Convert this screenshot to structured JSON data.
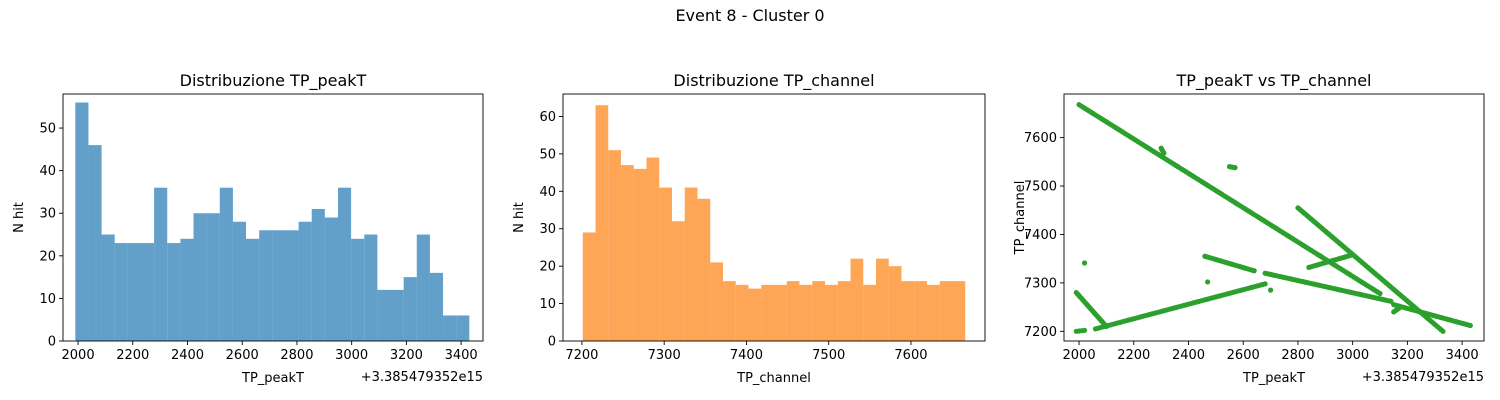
{
  "figure": {
    "suptitle": "Event 8 - Cluster 0"
  },
  "chart_data": [
    {
      "type": "bar",
      "title": "Distribuzione TP_peakT",
      "xlabel": "TP_peakT",
      "ylabel": "N hit",
      "x_offset_label": "+3.385479352e15",
      "color": "#1f77b4",
      "alpha": 0.7,
      "xlim": [
        1945,
        3480
      ],
      "ylim": [
        0,
        58
      ],
      "xticks": [
        2000,
        2200,
        2400,
        2600,
        2800,
        3000,
        3200,
        3400
      ],
      "yticks": [
        0,
        10,
        20,
        30,
        40,
        50
      ],
      "bin_edges": [
        1990,
        2038,
        2086,
        2134,
        2182,
        2230,
        2278,
        2326,
        2374,
        2422,
        2470,
        2518,
        2566,
        2614,
        2662,
        2710,
        2758,
        2806,
        2854,
        2902,
        2950,
        2998,
        3046,
        3094,
        3142,
        3190,
        3238,
        3286,
        3334,
        3382,
        3430
      ],
      "values": [
        56,
        46,
        25,
        23,
        23,
        23,
        36,
        23,
        24,
        30,
        30,
        36,
        28,
        24,
        26,
        26,
        26,
        28,
        31,
        29,
        36,
        24,
        25,
        12,
        12,
        15,
        25,
        16,
        6,
        6
      ]
    },
    {
      "type": "bar",
      "title": "Distribuzione TP_channel",
      "xlabel": "TP_channel",
      "ylabel": "N hit",
      "color": "#ff7f0e",
      "alpha": 0.7,
      "xlim": [
        7177,
        7690
      ],
      "ylim": [
        0,
        66
      ],
      "xticks": [
        7200,
        7300,
        7400,
        7500,
        7600
      ],
      "yticks": [
        0,
        10,
        20,
        30,
        40,
        50,
        60
      ],
      "bin_edges": [
        7201,
        7216.5,
        7232,
        7247.5,
        7263,
        7278.5,
        7294,
        7309.5,
        7325,
        7340.5,
        7356,
        7371.5,
        7387,
        7402.5,
        7418,
        7433.5,
        7449,
        7464.5,
        7480,
        7495.5,
        7511,
        7526.5,
        7542,
        7557.5,
        7573,
        7588.5,
        7604,
        7619.5,
        7635,
        7650.5,
        7666
      ],
      "values": [
        29,
        63,
        51,
        47,
        46,
        49,
        41,
        32,
        41,
        38,
        21,
        16,
        15,
        14,
        15,
        15,
        16,
        15,
        16,
        15,
        16,
        22,
        15,
        22,
        20,
        16,
        16,
        15,
        16,
        16
      ]
    },
    {
      "type": "scatter",
      "title": "TP_peakT vs TP_channel",
      "xlabel": "TP_peakT",
      "ylabel": "TP_channel",
      "x_offset_label": "+3.385479352e15",
      "color": "#2ca02c",
      "xlim": [
        1945,
        3480
      ],
      "ylim": [
        7180,
        7690
      ],
      "xticks": [
        2000,
        2200,
        2400,
        2600,
        2800,
        3000,
        3200,
        3400
      ],
      "yticks": [
        7200,
        7300,
        7400,
        7500,
        7600
      ],
      "segments": [
        {
          "x0": 2000,
          "y0": 7668,
          "x1": 3100,
          "y1": 7278,
          "n": 150
        },
        {
          "x0": 3150,
          "y0": 7255,
          "x1": 3430,
          "y1": 7212,
          "n": 40
        },
        {
          "x0": 2800,
          "y0": 7455,
          "x1": 3330,
          "y1": 7200,
          "n": 80
        },
        {
          "x0": 2060,
          "y0": 7205,
          "x1": 2680,
          "y1": 7298,
          "n": 70
        },
        {
          "x0": 2840,
          "y0": 7332,
          "x1": 3000,
          "y1": 7358,
          "n": 20
        },
        {
          "x0": 2680,
          "y0": 7320,
          "x1": 3140,
          "y1": 7262,
          "n": 60
        },
        {
          "x0": 2460,
          "y0": 7355,
          "x1": 2640,
          "y1": 7325,
          "n": 25
        },
        {
          "x0": 1990,
          "y0": 7280,
          "x1": 2100,
          "y1": 7210,
          "n": 25
        },
        {
          "x0": 1990,
          "y0": 7200,
          "x1": 2020,
          "y1": 7202,
          "n": 4
        },
        {
          "x0": 2300,
          "y0": 7578,
          "x1": 2310,
          "y1": 7568,
          "n": 5
        },
        {
          "x0": 2550,
          "y0": 7540,
          "x1": 2570,
          "y1": 7538,
          "n": 4
        },
        {
          "x0": 3150,
          "y0": 7240,
          "x1": 3170,
          "y1": 7248,
          "n": 4
        }
      ],
      "points": [
        [
          2020,
          7341
        ],
        [
          2470,
          7302
        ],
        [
          2700,
          7285
        ]
      ]
    }
  ]
}
